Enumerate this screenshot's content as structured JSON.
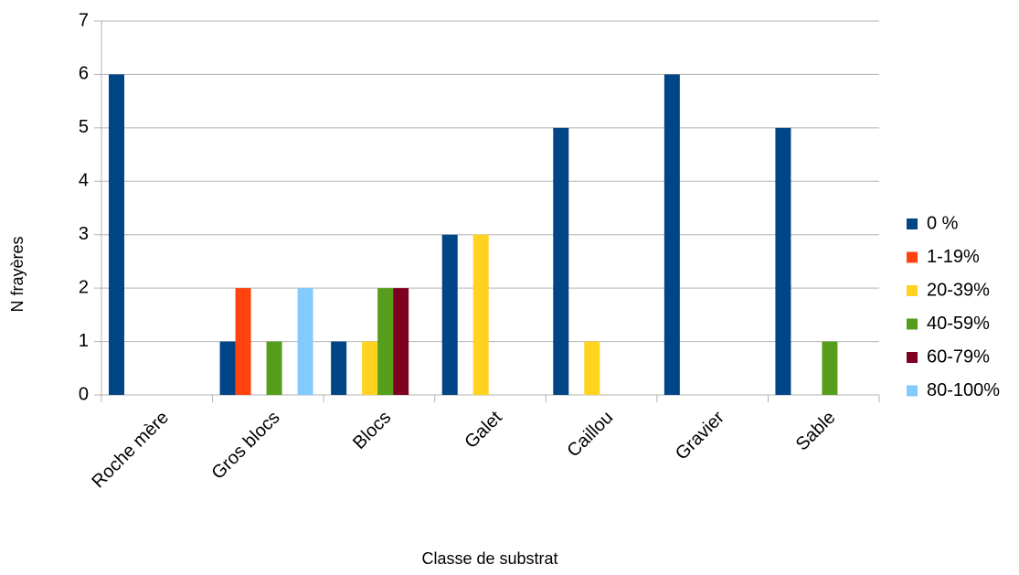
{
  "chart_data": {
    "type": "bar",
    "categories": [
      "Roche mère",
      "Gros blocs",
      "Blocs",
      "Galet",
      "Caillou",
      "Gravier",
      "Sable"
    ],
    "series": [
      {
        "name": "0 %",
        "color": "#004586",
        "values": [
          6,
          1,
          1,
          3,
          5,
          6,
          5
        ]
      },
      {
        "name": "1-19%",
        "color": "#ff420e",
        "values": [
          0,
          2,
          0,
          0,
          0,
          0,
          0
        ]
      },
      {
        "name": "20-39%",
        "color": "#ffd320",
        "values": [
          0,
          0,
          1,
          3,
          1,
          0,
          0
        ]
      },
      {
        "name": "40-59%",
        "color": "#579d1c",
        "values": [
          0,
          1,
          2,
          0,
          0,
          0,
          1
        ]
      },
      {
        "name": "60-79%",
        "color": "#7e0021",
        "values": [
          0,
          0,
          2,
          0,
          0,
          0,
          0
        ]
      },
      {
        "name": "80-100%",
        "color": "#83caff",
        "values": [
          0,
          2,
          0,
          0,
          0,
          0,
          0
        ]
      }
    ],
    "xlabel": "Classe de substrat",
    "ylabel": "N frayères",
    "ylim": [
      0,
      7
    ],
    "yticks": [
      0,
      1,
      2,
      3,
      4,
      5,
      6,
      7
    ],
    "grid": true,
    "legend": "right"
  }
}
